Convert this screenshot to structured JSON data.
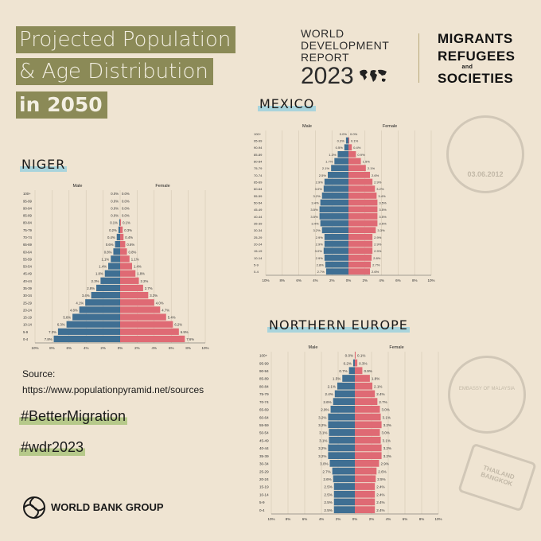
{
  "title": {
    "line1": "Projected Population",
    "line2": "& Age Distribution",
    "line3": "in 2050"
  },
  "wdr": {
    "line1": "WORLD",
    "line2": "DEVELOPMENT",
    "line3": "REPORT",
    "year": "2023"
  },
  "mrs": {
    "line1": "MIGRANTS",
    "line2": "REFUGEES",
    "and": "and",
    "line3": "SOCIETIES"
  },
  "source": {
    "label": "Source:",
    "url": "https://www.populationpyramid.net/sources"
  },
  "tags": [
    "#BetterMigration",
    "#wdr2023"
  ],
  "footer": {
    "org": "WORLD BANK GROUP"
  },
  "stamps": {
    "jordan_date": "03.06.2012",
    "malaysia_text": "EMBASSY OF MALAYSIA",
    "thailand_text": "THAILAND BANGKOK"
  },
  "colors": {
    "male": "#3f6f93",
    "female": "#df6a74",
    "accent": "#8b8a57"
  },
  "chart_data": [
    {
      "type": "bar",
      "subtype": "population-pyramid",
      "title": "NIGER",
      "legend": [
        "Male",
        "Female"
      ],
      "categories": [
        "0-4",
        "5-9",
        "10-14",
        "15-19",
        "20-24",
        "25-29",
        "30-34",
        "35-39",
        "40-44",
        "45-49",
        "50-54",
        "55-59",
        "60-64",
        "65-69",
        "70-74",
        "75-79",
        "80-84",
        "85-89",
        "90-94",
        "95-99",
        "100+"
      ],
      "series": [
        {
          "name": "Male",
          "values": [
            7.8,
            7.3,
            6.3,
            5.6,
            4.8,
            4.1,
            3.4,
            2.8,
            2.3,
            1.8,
            1.4,
            1.1,
            0.8,
            0.6,
            0.4,
            0.2,
            0.1,
            0.0,
            0.0,
            0.0,
            0.0
          ]
        },
        {
          "name": "Female",
          "values": [
            7.6,
            6.9,
            6.2,
            5.4,
            4.7,
            4.0,
            3.3,
            2.7,
            2.2,
            1.8,
            1.4,
            1.1,
            0.8,
            0.6,
            0.4,
            0.3,
            0.1,
            0.0,
            0.0,
            0.0,
            0.0
          ]
        }
      ],
      "axis_ticks": [
        "10%",
        "8%",
        "6%",
        "4%",
        "2%",
        "0%",
        "2%",
        "4%",
        "6%",
        "8%",
        "10%"
      ],
      "xlim": [
        -10,
        10
      ]
    },
    {
      "type": "bar",
      "subtype": "population-pyramid",
      "title": "MEXICO",
      "legend": [
        "Male",
        "Female"
      ],
      "categories": [
        "0-4",
        "5-9",
        "10-14",
        "15-19",
        "20-24",
        "25-29",
        "30-34",
        "35-39",
        "40-44",
        "45-49",
        "50-54",
        "55-59",
        "60-64",
        "65-69",
        "70-74",
        "75-79",
        "80-84",
        "85-89",
        "90-94",
        "95-99",
        "100+"
      ],
      "series": [
        {
          "name": "Male",
          "values": [
            2.7,
            2.8,
            2.9,
            3.0,
            2.9,
            2.9,
            3.2,
            3.4,
            3.5,
            3.5,
            3.4,
            3.2,
            3.0,
            2.9,
            2.5,
            2.1,
            1.7,
            1.3,
            0.5,
            0.3,
            0.0
          ]
        },
        {
          "name": "Female",
          "values": [
            2.6,
            2.7,
            2.8,
            2.9,
            2.9,
            2.9,
            3.3,
            3.5,
            3.5,
            3.5,
            3.5,
            3.4,
            3.2,
            2.9,
            2.6,
            2.1,
            1.5,
            0.9,
            0.4,
            0.1,
            0.0
          ]
        }
      ],
      "axis_ticks": [
        "10%",
        "8%",
        "6%",
        "4%",
        "2%",
        "0%",
        "2%",
        "4%",
        "6%",
        "8%",
        "10%"
      ],
      "xlim": [
        -10,
        10
      ]
    },
    {
      "type": "bar",
      "subtype": "population-pyramid",
      "title": "NORTHERN EUROPE",
      "legend": [
        "Male",
        "Female"
      ],
      "categories": [
        "0-4",
        "5-9",
        "10-14",
        "15-19",
        "20-24",
        "25-29",
        "30-34",
        "35-39",
        "40-44",
        "45-49",
        "50-54",
        "55-59",
        "60-64",
        "65-69",
        "70-74",
        "75-79",
        "80-84",
        "85-89",
        "90-94",
        "95-99",
        "100+"
      ],
      "series": [
        {
          "name": "Male",
          "values": [
            2.5,
            2.5,
            2.5,
            2.5,
            2.6,
            2.7,
            3.0,
            3.2,
            3.2,
            3.1,
            3.1,
            3.2,
            3.2,
            2.9,
            2.6,
            2.4,
            2.1,
            1.5,
            0.7,
            0.2,
            0.0
          ]
        },
        {
          "name": "Female",
          "values": [
            2.4,
            2.4,
            2.4,
            2.4,
            2.5,
            2.6,
            2.9,
            3.2,
            3.2,
            3.1,
            3.0,
            3.2,
            3.1,
            3.0,
            2.7,
            2.4,
            2.1,
            1.8,
            0.9,
            0.3,
            0.1
          ]
        }
      ],
      "axis_ticks": [
        "10%",
        "8%",
        "6%",
        "4%",
        "2%",
        "0%",
        "2%",
        "4%",
        "6%",
        "8%",
        "10%"
      ],
      "xlim": [
        -10,
        10
      ]
    }
  ]
}
